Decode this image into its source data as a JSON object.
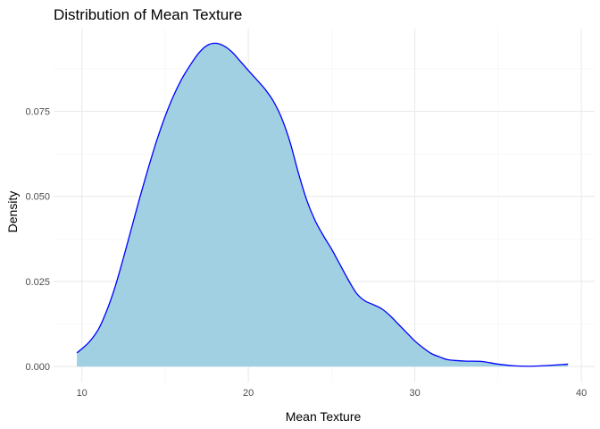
{
  "chart_data": {
    "type": "area",
    "title": "Distribution of Mean Texture",
    "xlabel": "Mean Texture",
    "ylabel": "Density",
    "xlim": [
      8.3,
      40.8
    ],
    "ylim": [
      -0.0047,
      0.0993
    ],
    "x_ticks": [
      10,
      20,
      30,
      40
    ],
    "y_ticks": [
      0.0,
      0.025,
      0.05,
      0.075
    ],
    "x_tick_labels": [
      "10",
      "20",
      "30",
      "40"
    ],
    "y_tick_labels": [
      "0.000",
      "0.025",
      "0.050",
      "0.075"
    ],
    "grid": true,
    "legend": "none",
    "fill_color": "#a0d0e1",
    "line_color": "#0000ff",
    "series": [
      {
        "x": [
          9.7,
          10.4,
          11.0,
          11.5,
          12.0,
          12.5,
          13.0,
          13.5,
          14.0,
          14.5,
          15.0,
          15.5,
          16.0,
          16.5,
          17.0,
          17.5,
          18.0,
          18.5,
          19.0,
          19.5,
          20.0,
          20.5,
          21.0,
          21.5,
          22.0,
          22.5,
          23.0,
          23.5,
          24.0,
          24.5,
          25.0,
          25.5,
          26.0,
          26.5,
          27.0,
          27.5,
          28.0,
          28.5,
          29.0,
          29.5,
          30.0,
          30.5,
          31.0,
          31.5,
          32.0,
          33.0,
          34.0,
          35.0,
          36.0,
          37.0,
          38.0,
          39.2
        ],
        "values": [
          0.004,
          0.007,
          0.011,
          0.0165,
          0.0235,
          0.032,
          0.041,
          0.05,
          0.0585,
          0.0665,
          0.0735,
          0.0795,
          0.0845,
          0.0885,
          0.092,
          0.0943,
          0.095,
          0.0943,
          0.0925,
          0.0898,
          0.087,
          0.0843,
          0.0815,
          0.078,
          0.073,
          0.066,
          0.057,
          0.049,
          0.043,
          0.0385,
          0.0345,
          0.03,
          0.0255,
          0.0215,
          0.0193,
          0.0182,
          0.017,
          0.015,
          0.0125,
          0.01,
          0.0075,
          0.0055,
          0.0038,
          0.0028,
          0.002,
          0.0016,
          0.0015,
          0.0007,
          0.0002,
          0.0001,
          0.0003,
          0.0007
        ]
      }
    ]
  }
}
